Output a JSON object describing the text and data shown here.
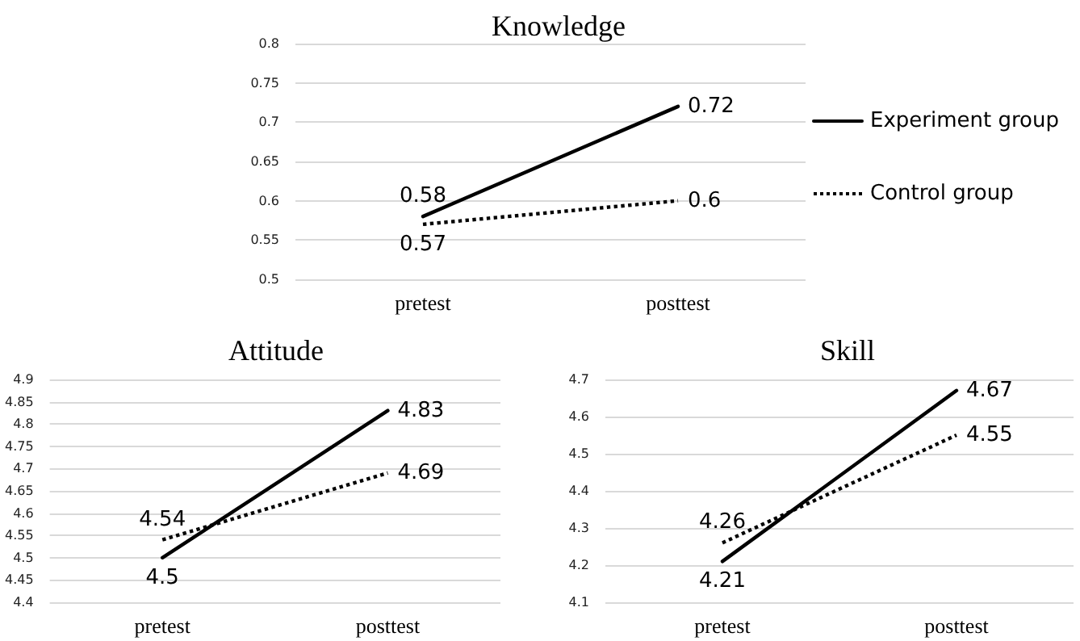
{
  "chart_data": [
    {
      "type": "line",
      "title": "Knowledge",
      "categories": [
        "pretest",
        "posttest"
      ],
      "series": [
        {
          "name": "Experiment group",
          "color": "#000000",
          "line_style": "solid",
          "values": [
            0.58,
            0.72
          ]
        },
        {
          "name": "Control group",
          "color": "#000000",
          "line_style": "dotted",
          "values": [
            0.57,
            0.6
          ]
        }
      ],
      "ylim": [
        0.5,
        0.8
      ],
      "yticks": [
        0.5,
        0.55,
        0.6,
        0.65,
        0.7,
        0.75,
        0.8
      ],
      "grid": "y",
      "legend": "right",
      "marker": "none",
      "data_labels": true
    },
    {
      "type": "line",
      "title": "Attitude",
      "categories": [
        "pretest",
        "posttest"
      ],
      "series": [
        {
          "color": "#000000",
          "line_style": "solid",
          "values": [
            4.5,
            4.83
          ]
        },
        {
          "color": "#000000",
          "line_style": "dotted",
          "values": [
            4.54,
            4.69
          ]
        }
      ],
      "ylim": [
        4.4,
        4.9
      ],
      "yticks": [
        4.4,
        4.45,
        4.5,
        4.55,
        4.6,
        4.65,
        4.7,
        4.75,
        4.8,
        4.85,
        4.9
      ],
      "grid": "y",
      "marker": "none",
      "data_labels": true
    },
    {
      "type": "line",
      "title": "Skill",
      "categories": [
        "pretest",
        "posttest"
      ],
      "series": [
        {
          "color": "#000000",
          "line_style": "solid",
          "values": [
            4.21,
            4.67
          ]
        },
        {
          "color": "#000000",
          "line_style": "dotted",
          "values": [
            4.26,
            4.55
          ]
        }
      ],
      "ylim": [
        4.1,
        4.7
      ],
      "yticks": [
        4.1,
        4.2,
        4.3,
        4.4,
        4.5,
        4.6,
        4.7
      ],
      "grid": "y",
      "marker": "none",
      "data_labels": true
    }
  ]
}
